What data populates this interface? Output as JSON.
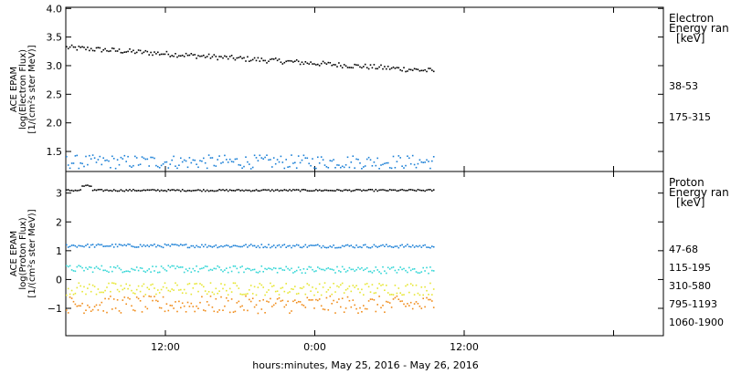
{
  "chart_data": [
    {
      "type": "scatter",
      "ylabel": [
        "ACE EPAM",
        "log(Electron Flux)",
        "[1/(cm²s ster MeV)]"
      ],
      "ylim": [
        1.15,
        4.02
      ],
      "yticks": [
        1.5,
        2.0,
        2.5,
        3.0,
        3.5,
        4.0
      ],
      "ytick_labels": [
        "1.5",
        "2.0",
        "2.5",
        "3.0",
        "3.5",
        "4.0"
      ],
      "legend_title": [
        "Electron",
        "Energy ran",
        "[keV]"
      ],
      "series": [
        {
          "name": "38-53",
          "color": "#000000",
          "start": 3.33,
          "end": 2.92,
          "noise": 0.045
        },
        {
          "name": "175-315",
          "color": "#1a7fd6",
          "start": 1.33,
          "end": 1.33,
          "noise": 0.12
        }
      ]
    },
    {
      "type": "scatter",
      "ylabel": [
        "ACE EPAM",
        "log(Proton Flux)",
        "[1/(cm²s ster MeV)]"
      ],
      "ylim": [
        -1.95,
        3.75
      ],
      "yticks": [
        -1,
        0,
        1,
        2,
        3
      ],
      "ytick_labels": [
        "−1",
        "0",
        "1",
        "2",
        "3"
      ],
      "legend_title": [
        "Proton",
        "Energy ran",
        "[keV]"
      ],
      "series": [
        {
          "name": "47-68",
          "color": "#000000",
          "start": 3.12,
          "end": 3.12,
          "noise": 0.03
        },
        {
          "name": "115-195",
          "color": "#1a7fd6",
          "start": 1.2,
          "end": 1.18,
          "noise": 0.06
        },
        {
          "name": "310-580",
          "color": "#33d6d6",
          "start": 0.4,
          "end": 0.35,
          "noise": 0.12
        },
        {
          "name": "795-1193",
          "color": "#e6e633",
          "start": -0.3,
          "end": -0.3,
          "noise": 0.22
        },
        {
          "name": "1060-1900",
          "color": "#f08c1a",
          "start": -0.85,
          "end": -0.85,
          "noise": 0.3
        }
      ]
    }
  ],
  "x_axis": {
    "xlim_hours": [
      0,
      48
    ],
    "ticks_hours": [
      8,
      20,
      32,
      44
    ],
    "tick_labels": [
      "12:00",
      "0:00",
      "12:00"
    ],
    "labeled_ticks_hours": [
      8,
      20,
      32
    ],
    "data_end_hours": 29.5,
    "label": "hours:minutes, May 25, 2016 - May 26, 2016"
  }
}
